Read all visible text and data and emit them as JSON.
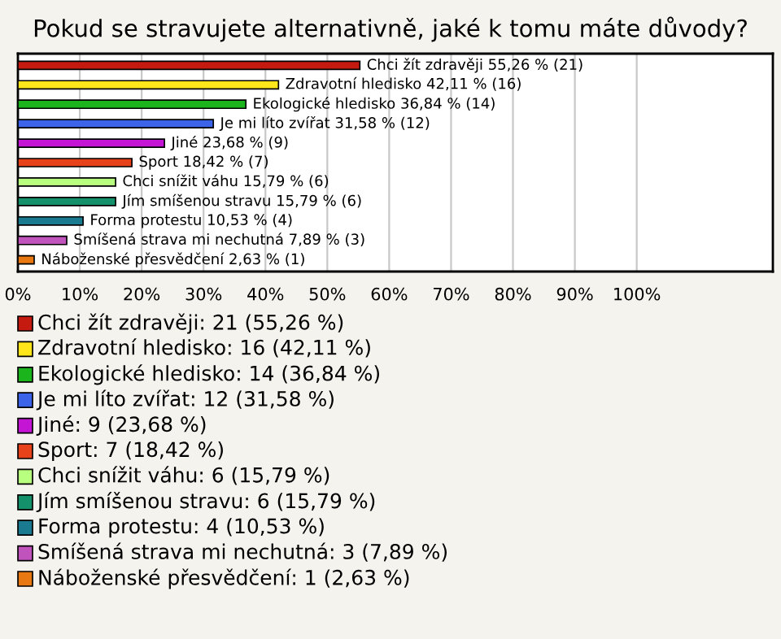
{
  "chart_data": {
    "type": "bar",
    "orientation": "horizontal",
    "title": "Pokud se stravujete alternativně, jaké k tomu máte důvody?",
    "categories": [
      "Chci žít zdravěji",
      "Zdravotní hledisko",
      "Ekologické hledisko",
      "Je mi líto zvířat",
      "Jiné",
      "Sport",
      "Chci snížit váhu",
      "Jím smíšenou stravu",
      "Forma protestu",
      "Smíšená strava mi nechutná",
      "Náboženské přesvědčení"
    ],
    "values": [
      55.26,
      42.11,
      36.84,
      31.58,
      23.68,
      18.42,
      15.79,
      15.79,
      10.53,
      7.89,
      2.63
    ],
    "colors": [
      "#c41a10",
      "#ffe61a",
      "#1cb41c",
      "#3c64e8",
      "#c414d4",
      "#e8421a",
      "#b8ff80",
      "#14906a",
      "#1a7a90",
      "#c054bc",
      "#e87812"
    ],
    "value_labels": [
      "55,26 % (21)",
      "42,11 % (16)",
      "36,84 % (14)",
      "31,58 % (12)",
      "23,68 % (9)",
      "18,42 % (7)",
      "15,79 % (6)",
      "15,79 % (6)",
      "10,53 % (4)",
      "7,89 % (3)",
      "2,63 % (1)"
    ],
    "xlim": [
      0,
      122
    ],
    "xticks": [
      {
        "value": 0,
        "label": "0%"
      },
      {
        "value": 10,
        "label": "10%"
      },
      {
        "value": 20,
        "label": "20%"
      },
      {
        "value": 30,
        "label": "30%"
      },
      {
        "value": 40,
        "label": "40%"
      },
      {
        "value": 50,
        "label": "50%"
      },
      {
        "value": 60,
        "label": "60%"
      },
      {
        "value": 70,
        "label": "70%"
      },
      {
        "value": 80,
        "label": "80%"
      },
      {
        "value": 90,
        "label": "90%"
      },
      {
        "value": 100,
        "label": "100%"
      }
    ],
    "grid": "x",
    "annotations": [
      "Chci žít zdravěji: 21 (55,26 %)",
      "Zdravotní hledisko: 16 (42,11 %)",
      "Ekologické hledisko: 14 (36,84 %)",
      "Je mi líto zvířat: 12 (31,58 %)",
      "Jiné: 9 (23,68 %)",
      "Sport: 7 (18,42 %)",
      "Chci snížit váhu: 6 (15,79 %)",
      "Jím smíšenou stravu: 6 (15,79 %)",
      "Forma protestu: 4 (10,53 %)",
      "Smíšená strava mi nechutná: 3 (7,89 %)",
      "Náboženské přesvědčení: 1 (2,63 %)"
    ]
  }
}
